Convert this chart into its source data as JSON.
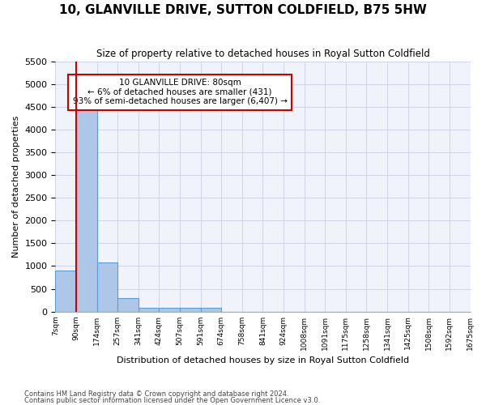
{
  "title": "10, GLANVILLE DRIVE, SUTTON COLDFIELD, B75 5HW",
  "subtitle": "Size of property relative to detached houses in Royal Sutton Coldfield",
  "xlabel": "Distribution of detached houses by size in Royal Sutton Coldfield",
  "ylabel": "Number of detached properties",
  "footer1": "Contains HM Land Registry data © Crown copyright and database right 2024.",
  "footer2": "Contains public sector information licensed under the Open Government Licence v3.0.",
  "bin_labels": [
    "7sqm",
    "90sqm",
    "174sqm",
    "257sqm",
    "341sqm",
    "424sqm",
    "507sqm",
    "591sqm",
    "674sqm",
    "758sqm",
    "841sqm",
    "924sqm",
    "1008sqm",
    "1091sqm",
    "1175sqm",
    "1258sqm",
    "1341sqm",
    "1425sqm",
    "1508sqm",
    "1592sqm",
    "1675sqm"
  ],
  "bar_values": [
    900,
    4550,
    1075,
    300,
    90,
    75,
    75,
    80,
    0,
    0,
    0,
    0,
    0,
    0,
    0,
    0,
    0,
    0,
    0,
    0
  ],
  "bar_color": "#aec6e8",
  "bar_edgecolor": "#5a9fd4",
  "vline_color": "#cc0000",
  "annotation_text": "10 GLANVILLE DRIVE: 80sqm\n← 6% of detached houses are smaller (431)\n93% of semi-detached houses are larger (6,407) →",
  "annotation_box_color": "#cc0000",
  "ylim": [
    0,
    5500
  ],
  "yticks": [
    0,
    500,
    1000,
    1500,
    2000,
    2500,
    3000,
    3500,
    4000,
    4500,
    5000,
    5500
  ],
  "grid_color": "#d0d8e8",
  "bg_color": "#f0f4fa"
}
